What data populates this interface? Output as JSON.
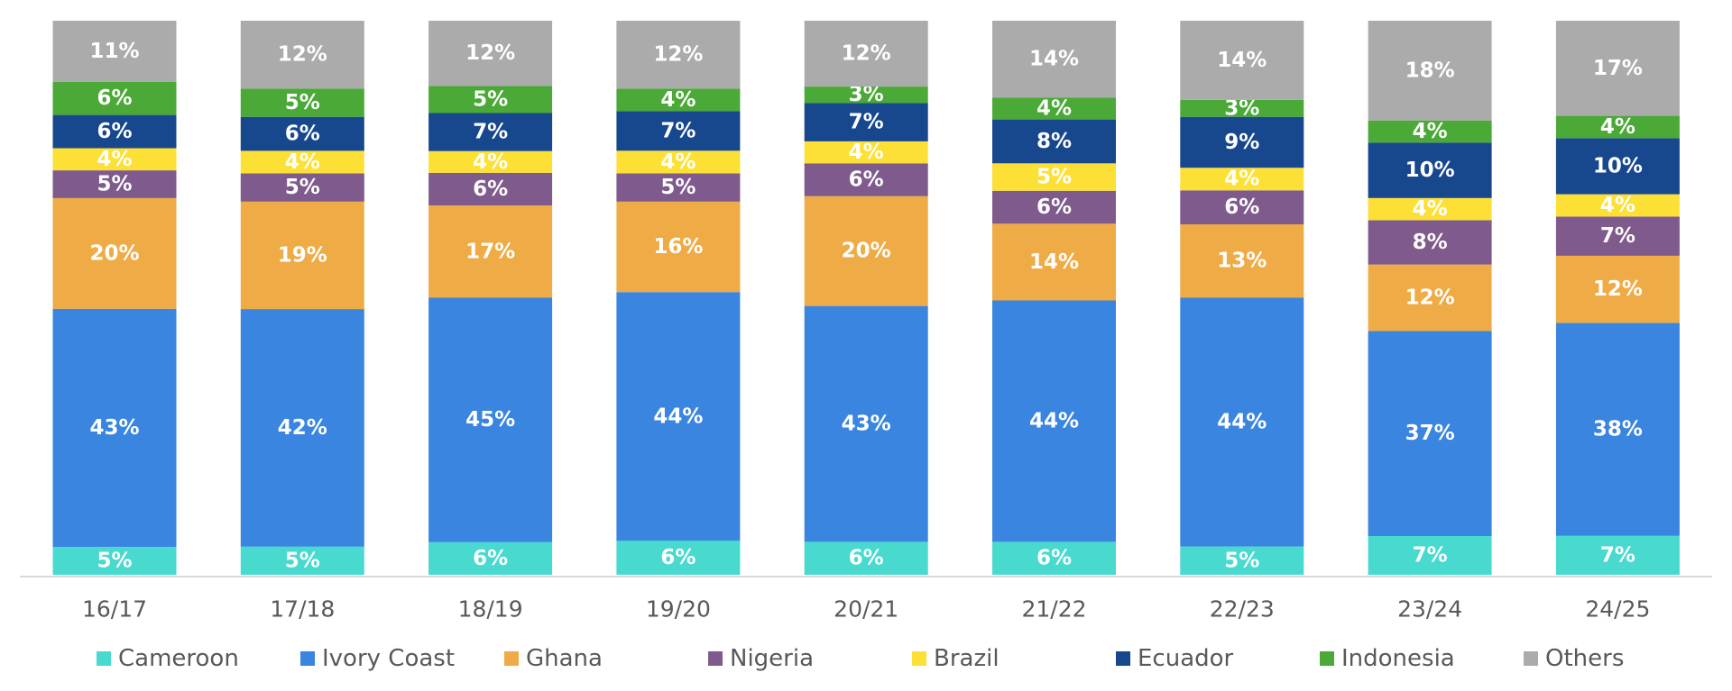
{
  "chart_data": {
    "type": "bar",
    "stacked": true,
    "categories": [
      "16/17",
      "17/18",
      "18/19",
      "19/20",
      "20/21",
      "21/22",
      "22/23",
      "23/24",
      "24/25"
    ],
    "series": [
      {
        "name": "Cameroon",
        "color": "#48d9cf",
        "values": [
          5,
          5,
          6,
          6,
          6,
          6,
          5,
          7,
          7
        ]
      },
      {
        "name": "Ivory Coast",
        "color": "#3985e0",
        "values": [
          43,
          42,
          45,
          44,
          43,
          44,
          44,
          37,
          38
        ]
      },
      {
        "name": "Ghana",
        "color": "#efab45",
        "values": [
          20,
          19,
          17,
          16,
          20,
          14,
          13,
          12,
          12
        ]
      },
      {
        "name": "Nigeria",
        "color": "#7f5a8d",
        "values": [
          5,
          5,
          6,
          5,
          6,
          6,
          6,
          8,
          7
        ]
      },
      {
        "name": "Brazil",
        "color": "#fde036",
        "values": [
          4,
          4,
          4,
          4,
          4,
          5,
          4,
          4,
          4
        ]
      },
      {
        "name": "Ecuador",
        "color": "#17478d",
        "values": [
          6,
          6,
          7,
          7,
          7,
          8,
          9,
          10,
          10
        ]
      },
      {
        "name": "Indonesia",
        "color": "#4aa937",
        "values": [
          6,
          5,
          5,
          4,
          3,
          4,
          3,
          4,
          4
        ]
      },
      {
        "name": "Others",
        "color": "#ababab",
        "values": [
          11,
          12,
          12,
          12,
          12,
          14,
          14,
          18,
          17
        ]
      }
    ],
    "value_suffix": "%",
    "legend_position": "bottom",
    "grid": false
  }
}
